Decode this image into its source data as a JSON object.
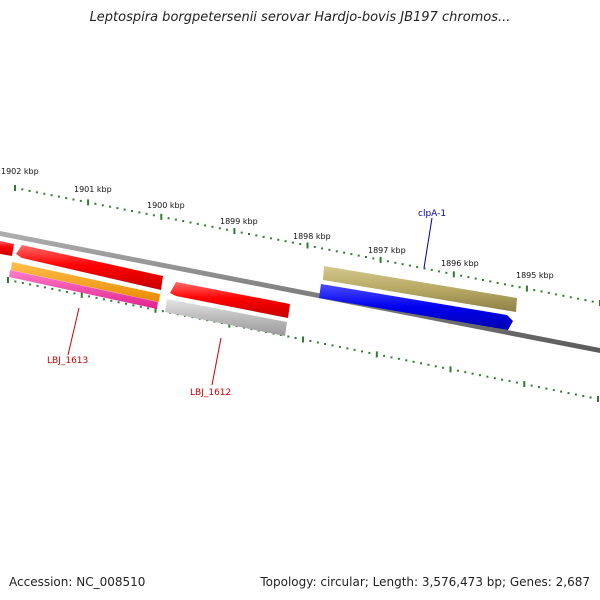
{
  "title": "Leptospira borgpetersenii serovar Hardjo-bovis JB197 chromos...",
  "footer": {
    "accession": "Accession: NC_008510",
    "summary": "Topology: circular; Length: 3,576,473 bp; Genes: 2,687"
  },
  "colors": {
    "backbone": "#7a7a7a",
    "ticks": "#2e7d2e",
    "red_gene": "#ff0000",
    "orange_gene": "#ff9900",
    "magenta_gene": "#ff33aa",
    "gray_gene": "#bbbbbb",
    "olive_gene": "#b5a55f",
    "blue_gene": "#0000ee",
    "label_red": "#cc0000",
    "label_blue": "#0000aa"
  },
  "ruler": {
    "labels": [
      "1902 kbp",
      "1901 kbp",
      "1900 kbp",
      "1899 kbp",
      "1898 kbp",
      "1897 kbp",
      "1896 kbp",
      "1895 kbp"
    ]
  },
  "genes": [
    {
      "name": "LBJ_1613",
      "label": "LBJ_1613",
      "color_key": "label_red"
    },
    {
      "name": "LBJ_1612",
      "label": "LBJ_1612",
      "color_key": "label_red"
    },
    {
      "name": "clpA-1",
      "label": "clpA-1",
      "color_key": "label_blue"
    }
  ]
}
